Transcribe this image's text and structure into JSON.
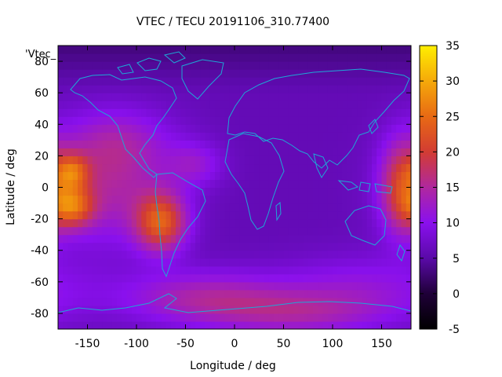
{
  "chart_data": {
    "type": "heatmap",
    "title": "VTEC / TECU 20191106_310.77400",
    "xlabel": "Longitude / deg",
    "ylabel": "Latitude / deg",
    "legend_entry": "'Vtec_",
    "xlim": [
      -180,
      180
    ],
    "ylim": [
      -90,
      90
    ],
    "xticks": [
      -150,
      -100,
      -50,
      0,
      50,
      100,
      150
    ],
    "yticks": [
      -80,
      -60,
      -40,
      -20,
      0,
      20,
      40,
      60,
      80
    ],
    "colorbar": {
      "range": [
        -5,
        35
      ],
      "ticks": [
        -5,
        0,
        5,
        10,
        15,
        20,
        25,
        30,
        35
      ],
      "palette": "gnuplot pm3d (black-purple-red-yellow)"
    },
    "grid_spacing_deg": 5,
    "value_model": {
      "description": "Approximate VTEC (TECU) field as read from the map",
      "background": 6,
      "polar_north": 3,
      "features": [
        {
          "lon": -165,
          "lat": -12,
          "sigma_lon": 15,
          "sigma_lat": 9,
          "amp": 14
        },
        {
          "lon": -165,
          "lat": 10,
          "sigma_lon": 12,
          "sigma_lat": 8,
          "amp": 12
        },
        {
          "lon": -75,
          "lat": -22,
          "sigma_lon": 18,
          "sigma_lat": 13,
          "amp": 16
        },
        {
          "lon": -130,
          "lat": 0,
          "sigma_lon": 45,
          "sigma_lat": 25,
          "amp": 8
        },
        {
          "lon": 170,
          "lat": 0,
          "sigma_lon": 15,
          "sigma_lat": 20,
          "amp": 12
        },
        {
          "lon": -120,
          "lat": 30,
          "sigma_lon": 40,
          "sigma_lat": 15,
          "amp": 5
        },
        {
          "lon": -30,
          "lat": -70,
          "sigma_lon": 60,
          "sigma_lat": 12,
          "amp": 8
        },
        {
          "lon": 130,
          "lat": -65,
          "sigma_lon": 60,
          "sigma_lat": 15,
          "amp": 5
        },
        {
          "lon": 60,
          "lat": -80,
          "sigma_lon": 60,
          "sigma_lat": 10,
          "amp": 6
        },
        {
          "lon": -40,
          "lat": 15,
          "sigma_lon": 20,
          "sigma_lat": 10,
          "amp": 5
        }
      ]
    }
  },
  "colors": {
    "coastline": "#1ea7d6",
    "background": "#ffffff"
  }
}
